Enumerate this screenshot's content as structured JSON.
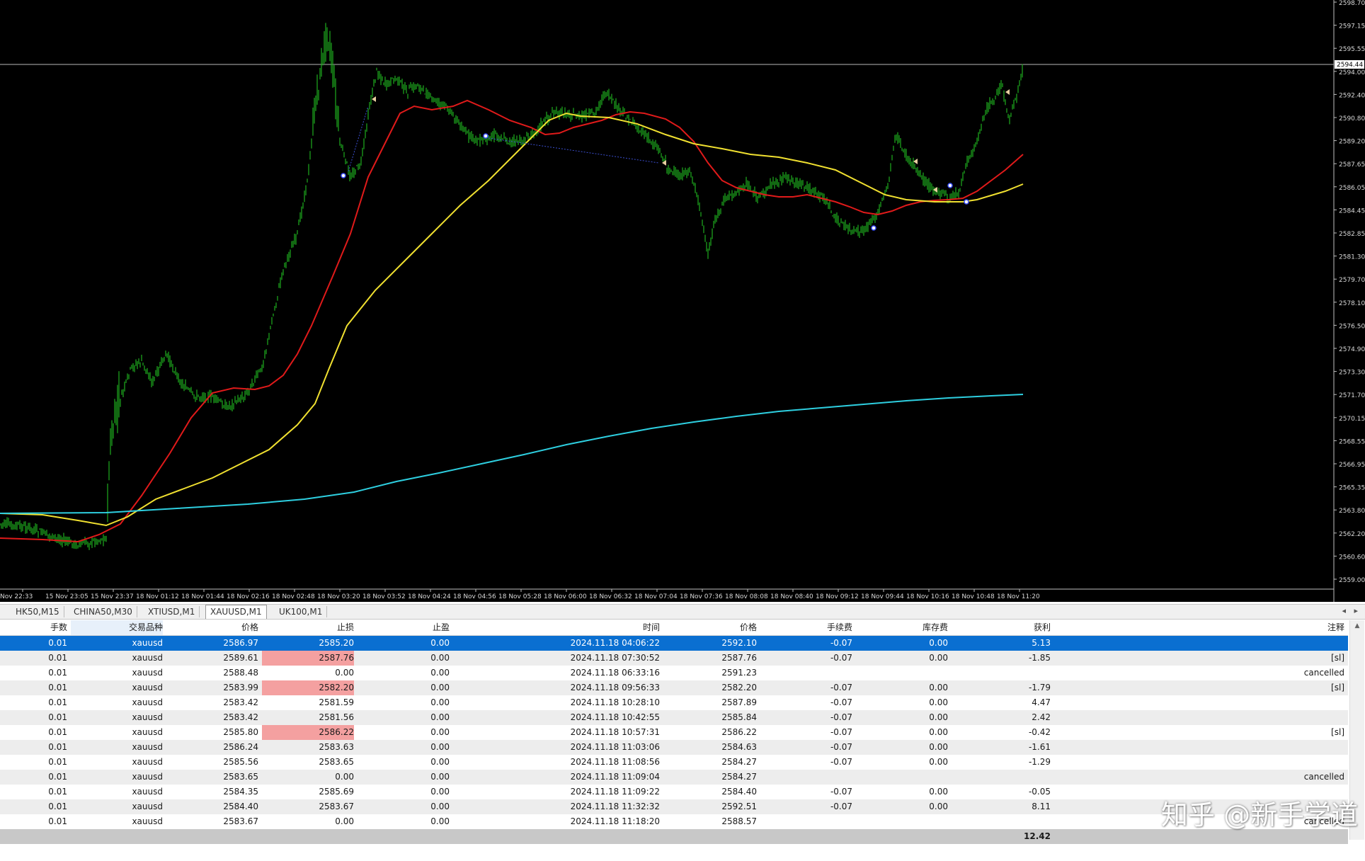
{
  "chart": {
    "symbol": "XAUUSD",
    "timeframe": "M1",
    "current_price_label": "2594.44",
    "price_axis_labels": [
      "2598.70",
      "2597.15",
      "2595.55",
      "2594.00",
      "2592.40",
      "2590.80",
      "2589.20",
      "2587.65",
      "2586.05",
      "2584.45",
      "2582.85",
      "2581.30",
      "2579.70",
      "2578.10",
      "2576.50",
      "2574.90",
      "2573.30",
      "2571.70",
      "2570.15",
      "2568.55",
      "2566.95",
      "2565.35",
      "2563.80",
      "2562.20",
      "2560.60",
      "2559.00"
    ],
    "time_axis_labels": [
      "Nov 22:33",
      "15 Nov 23:05",
      "15 Nov 23:37",
      "18 Nov 01:12",
      "18 Nov 01:44",
      "18 Nov 02:16",
      "18 Nov 02:48",
      "18 Nov 03:20",
      "18 Nov 03:52",
      "18 Nov 04:24",
      "18 Nov 04:56",
      "18 Nov 05:28",
      "18 Nov 06:00",
      "18 Nov 06:32",
      "18 Nov 07:04",
      "18 Nov 07:36",
      "18 Nov 08:08",
      "18 Nov 08:40",
      "18 Nov 09:12",
      "18 Nov 09:44",
      "18 Nov 10:16",
      "18 Nov 10:48",
      "18 Nov 11:20"
    ],
    "colors": {
      "background": "#000000",
      "candles": "#1fae1f",
      "ma_fast": "#e01a1a",
      "ma_mid": "#f0e030",
      "ma_slow": "#2ecfe0",
      "axis_text": "#d8d8d8",
      "price_line": "#b8b8b8"
    }
  },
  "tabs": [
    "HK50,M15",
    "CHINA50,M30",
    "XTIUSD,M1",
    "XAUUSD,M1",
    "UK100,M1"
  ],
  "active_tab": "XAUUSD,M1",
  "tab_nav": {
    "left": "◂",
    "right": "▸"
  },
  "table": {
    "headers": {
      "lots": "手数",
      "symbol": "交易品种",
      "price": "价格",
      "sl": "止损",
      "tp": "止盈",
      "time": "时间",
      "close_price": "价格",
      "commission": "手续费",
      "swap": "库存费",
      "profit": "获利",
      "comment": "注释"
    },
    "rows": [
      {
        "lots": "0.01",
        "symbol": "xauusd",
        "price": "2586.97",
        "sl": "2585.20",
        "tp": "0.00",
        "time": "2024.11.18 04:06:22",
        "close_price": "2592.10",
        "commission": "-0.07",
        "swap": "0.00",
        "profit": "5.13",
        "comment": "",
        "selected": true,
        "sl_hit": false
      },
      {
        "lots": "0.01",
        "symbol": "xauusd",
        "price": "2589.61",
        "sl": "2587.76",
        "tp": "0.00",
        "time": "2024.11.18 07:30:52",
        "close_price": "2587.76",
        "commission": "-0.07",
        "swap": "0.00",
        "profit": "-1.85",
        "comment": "[sl]",
        "selected": false,
        "sl_hit": true
      },
      {
        "lots": "0.01",
        "symbol": "xauusd",
        "price": "2588.48",
        "sl": "0.00",
        "tp": "0.00",
        "time": "2024.11.18 06:33:16",
        "close_price": "2591.23",
        "commission": "",
        "swap": "",
        "profit": "",
        "comment": "cancelled",
        "selected": false,
        "sl_hit": false
      },
      {
        "lots": "0.01",
        "symbol": "xauusd",
        "price": "2583.99",
        "sl": "2582.20",
        "tp": "0.00",
        "time": "2024.11.18 09:56:33",
        "close_price": "2582.20",
        "commission": "-0.07",
        "swap": "0.00",
        "profit": "-1.79",
        "comment": "[sl]",
        "selected": false,
        "sl_hit": true
      },
      {
        "lots": "0.01",
        "symbol": "xauusd",
        "price": "2583.42",
        "sl": "2581.59",
        "tp": "0.00",
        "time": "2024.11.18 10:28:10",
        "close_price": "2587.89",
        "commission": "-0.07",
        "swap": "0.00",
        "profit": "4.47",
        "comment": "",
        "selected": false,
        "sl_hit": false
      },
      {
        "lots": "0.01",
        "symbol": "xauusd",
        "price": "2583.42",
        "sl": "2581.56",
        "tp": "0.00",
        "time": "2024.11.18 10:42:55",
        "close_price": "2585.84",
        "commission": "-0.07",
        "swap": "0.00",
        "profit": "2.42",
        "comment": "",
        "selected": false,
        "sl_hit": false
      },
      {
        "lots": "0.01",
        "symbol": "xauusd",
        "price": "2585.80",
        "sl": "2586.22",
        "tp": "0.00",
        "time": "2024.11.18 10:57:31",
        "close_price": "2586.22",
        "commission": "-0.07",
        "swap": "0.00",
        "profit": "-0.42",
        "comment": "[sl]",
        "selected": false,
        "sl_hit": true
      },
      {
        "lots": "0.01",
        "symbol": "xauusd",
        "price": "2586.24",
        "sl": "2583.63",
        "tp": "0.00",
        "time": "2024.11.18 11:03:06",
        "close_price": "2584.63",
        "commission": "-0.07",
        "swap": "0.00",
        "profit": "-1.61",
        "comment": "",
        "selected": false,
        "sl_hit": false
      },
      {
        "lots": "0.01",
        "symbol": "xauusd",
        "price": "2585.56",
        "sl": "2583.65",
        "tp": "0.00",
        "time": "2024.11.18 11:08:56",
        "close_price": "2584.27",
        "commission": "-0.07",
        "swap": "0.00",
        "profit": "-1.29",
        "comment": "",
        "selected": false,
        "sl_hit": false
      },
      {
        "lots": "0.01",
        "symbol": "xauusd",
        "price": "2583.65",
        "sl": "0.00",
        "tp": "0.00",
        "time": "2024.11.18 11:09:04",
        "close_price": "2584.27",
        "commission": "",
        "swap": "",
        "profit": "",
        "comment": "cancelled",
        "selected": false,
        "sl_hit": false
      },
      {
        "lots": "0.01",
        "symbol": "xauusd",
        "price": "2584.35",
        "sl": "2585.69",
        "tp": "0.00",
        "time": "2024.11.18 11:09:22",
        "close_price": "2584.40",
        "commission": "-0.07",
        "swap": "0.00",
        "profit": "-0.05",
        "comment": "",
        "selected": false,
        "sl_hit": false
      },
      {
        "lots": "0.01",
        "symbol": "xauusd",
        "price": "2584.40",
        "sl": "2583.67",
        "tp": "0.00",
        "time": "2024.11.18 11:32:32",
        "close_price": "2592.51",
        "commission": "-0.07",
        "swap": "0.00",
        "profit": "8.11",
        "comment": "",
        "selected": false,
        "sl_hit": false
      },
      {
        "lots": "0.01",
        "symbol": "xauusd",
        "price": "2583.67",
        "sl": "0.00",
        "tp": "0.00",
        "time": "2024.11.18 11:18:20",
        "close_price": "2588.57",
        "commission": "",
        "swap": "",
        "profit": "",
        "comment": "cancelled",
        "selected": false,
        "sl_hit": false
      }
    ],
    "total_profit": "12.42"
  },
  "watermark": "知乎 @新手学道"
}
